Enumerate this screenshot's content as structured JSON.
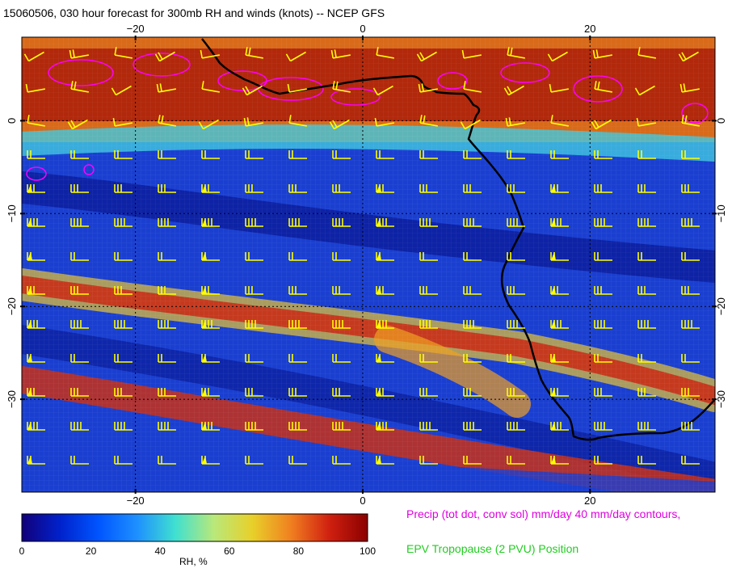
{
  "title": "15060506, 030 hour forecast for 300mb RH and winds (knots) -- NCEP GFS",
  "map": {
    "lon_range": [
      -30,
      31
    ],
    "lat_range": [
      -40,
      9
    ],
    "lon_ticks": [
      -20,
      0,
      20
    ],
    "lat_ticks": [
      0,
      -10,
      -20,
      -30
    ],
    "lon_tick_labels": [
      "−20",
      "0",
      "20"
    ],
    "lat_tick_labels": [
      "0",
      "−10",
      "−20",
      "−30"
    ],
    "grid": true,
    "field": "RH",
    "coastline_color": "#000000",
    "barb_color": "#ffff00",
    "contour_color": "#ff00ff"
  },
  "colorbar": {
    "title": "RH, %",
    "ticks": [
      "0",
      "20",
      "40",
      "60",
      "80",
      "100"
    ],
    "range": [
      0,
      100
    ],
    "colors": [
      "#12007a",
      "#0022cc",
      "#0055ff",
      "#1e90ff",
      "#40e0d0",
      "#b9e87a",
      "#e8d02a",
      "#f08020",
      "#d02010",
      "#8b0000"
    ]
  },
  "legend": {
    "precip_text": "Precip (tot dot, conv sol) mm/day 40 mm/day contours,",
    "precip_color": "#ff00ff",
    "epv_text": "EPV Tropopause (2 PVU) Position",
    "epv_color": "#22cc22"
  }
}
